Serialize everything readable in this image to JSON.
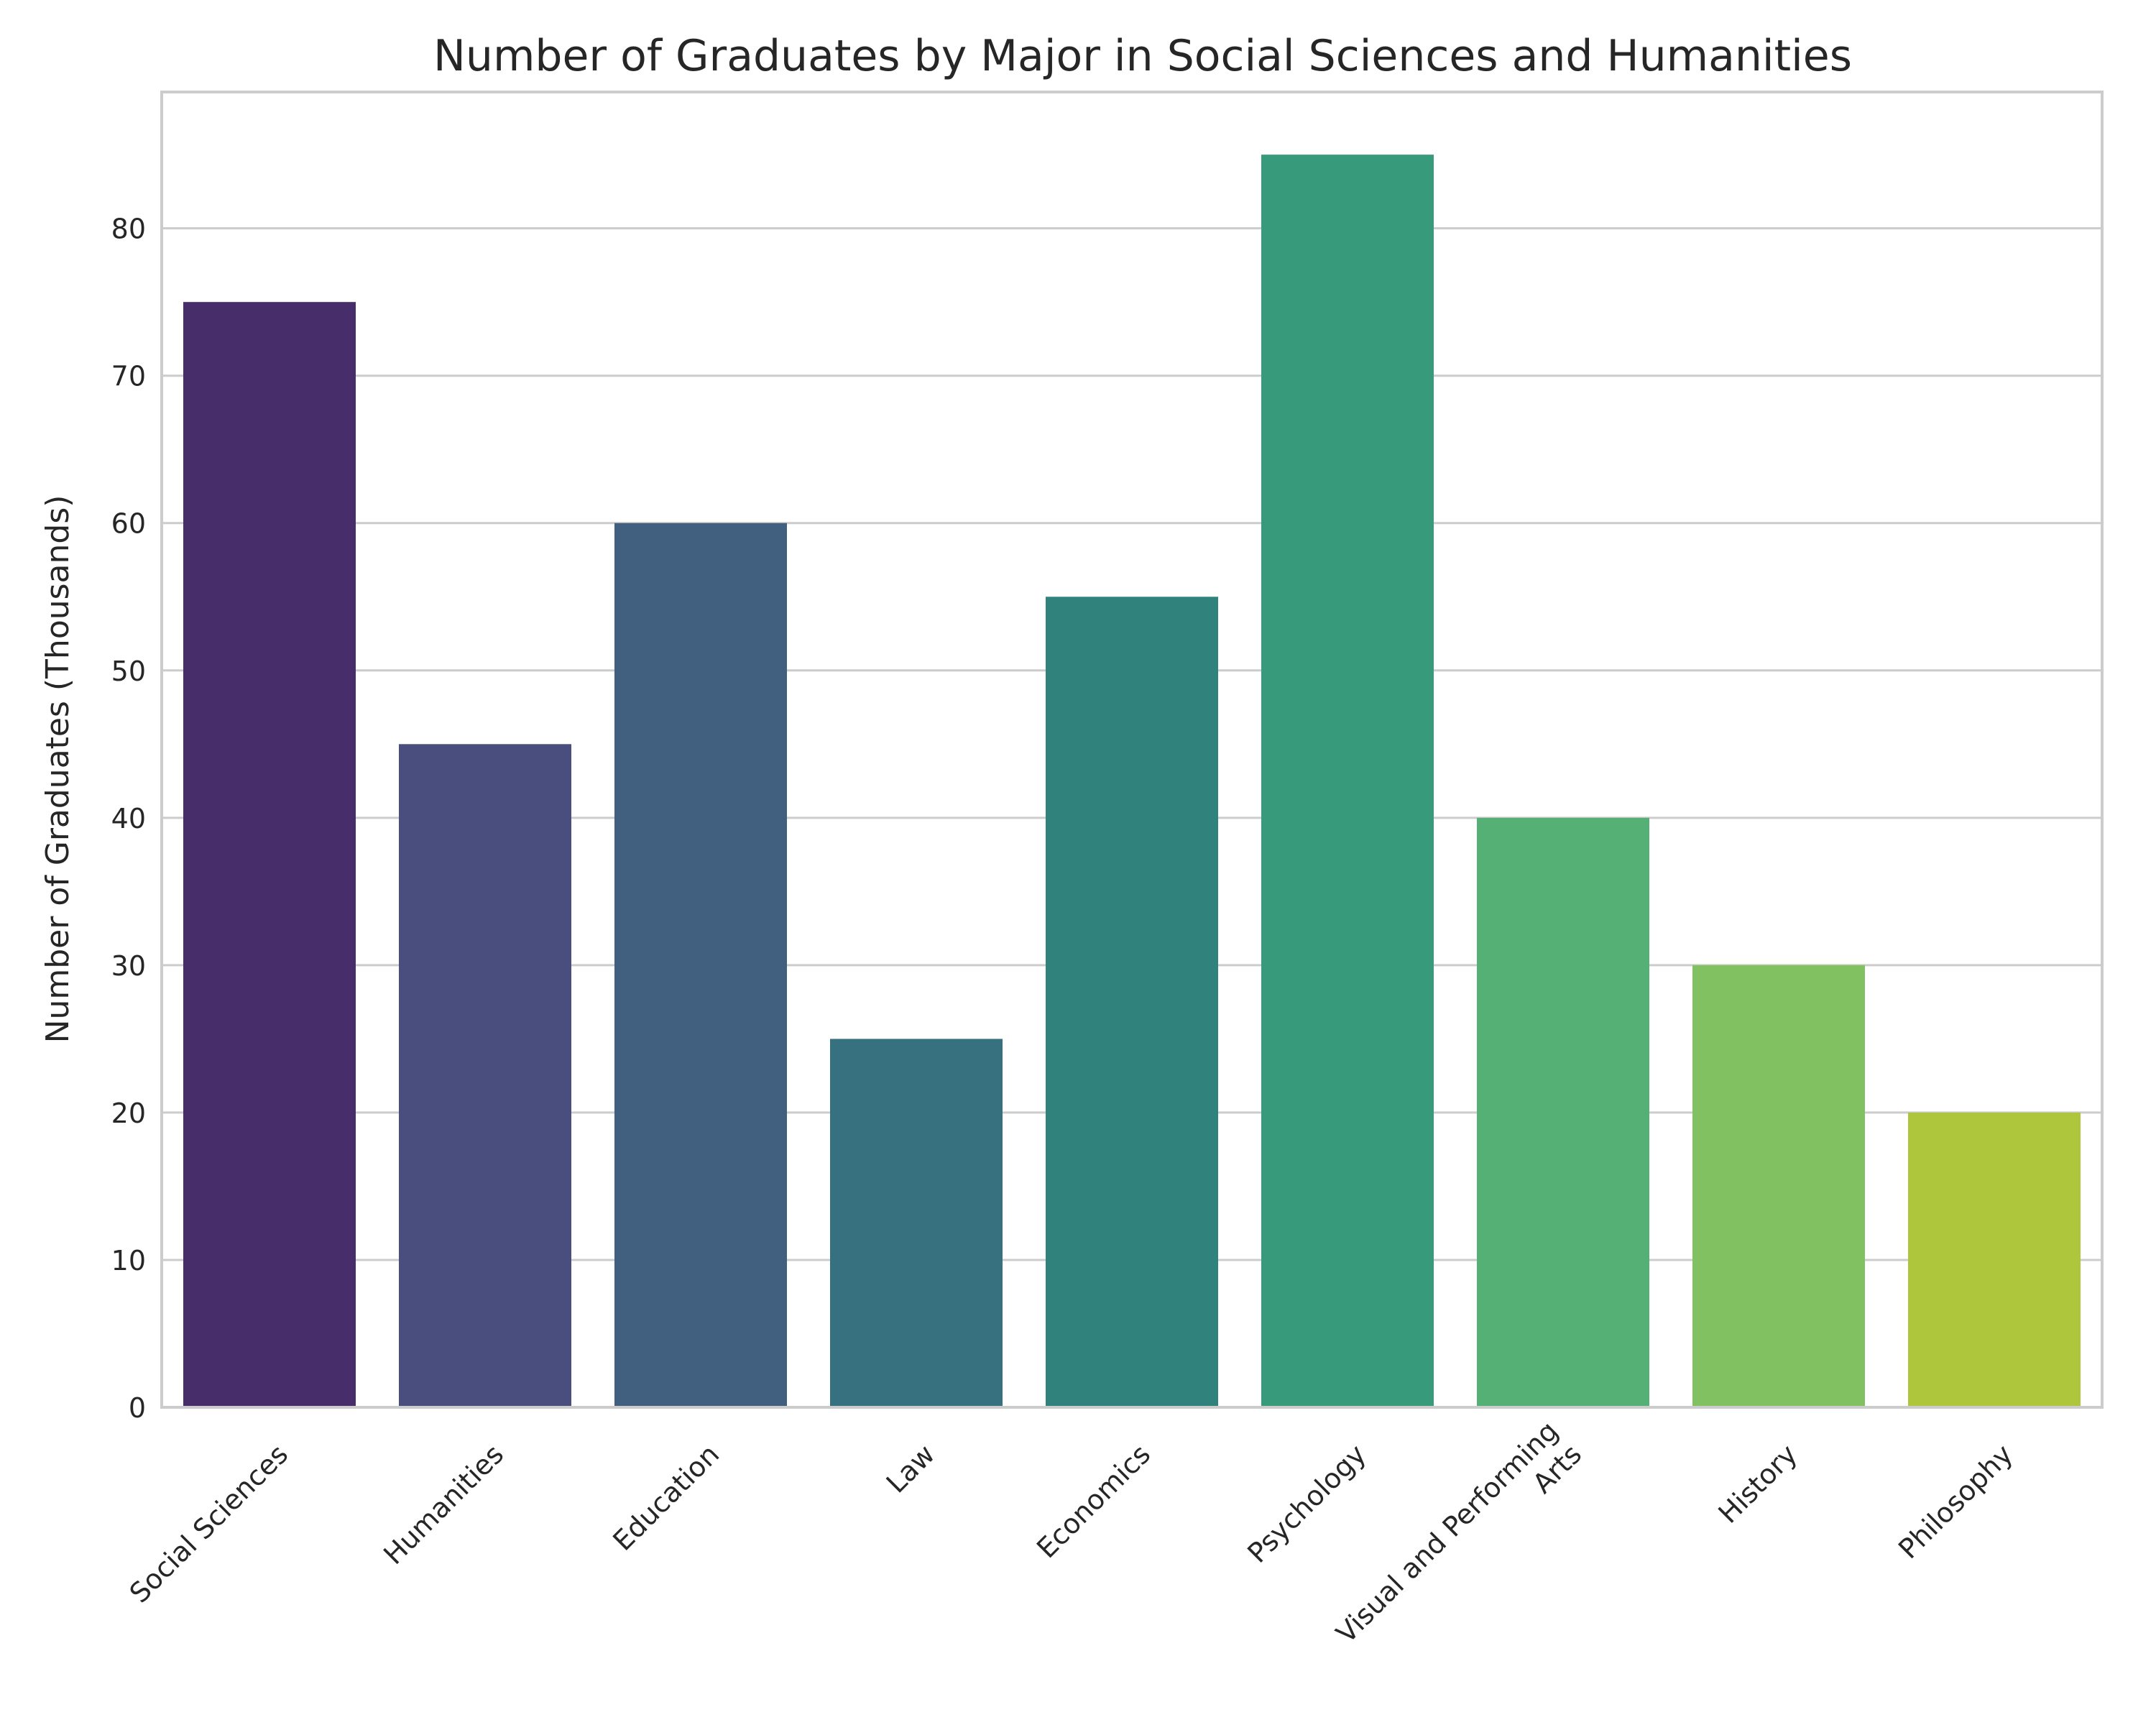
{
  "chart_data": {
    "type": "bar",
    "title": "Number of Graduates by Major in Social Sciences and Humanities",
    "xlabel": "",
    "ylabel": "Number of Graduates (Thousands)",
    "categories": [
      [
        "Social Sciences"
      ],
      [
        "Humanities"
      ],
      [
        "Education"
      ],
      [
        "Law"
      ],
      [
        "Economics"
      ],
      [
        "Psychology"
      ],
      [
        "Visual and Performing",
        "Arts"
      ],
      [
        "History"
      ],
      [
        "Philosophy"
      ]
    ],
    "values": [
      75,
      45,
      60,
      25,
      55,
      85,
      40,
      30,
      20
    ],
    "colors": [
      "#482d6b",
      "#4a4e7e",
      "#41607f",
      "#37717f",
      "#2f837c",
      "#369a7b",
      "#54b075",
      "#81c161",
      "#adc63c"
    ],
    "ylim": [
      0,
      89.25
    ],
    "yticks": [
      0,
      10,
      20,
      30,
      40,
      50,
      60,
      70,
      80
    ],
    "grid": true,
    "grid_axis": "y",
    "x_tick_rotation": 45
  }
}
